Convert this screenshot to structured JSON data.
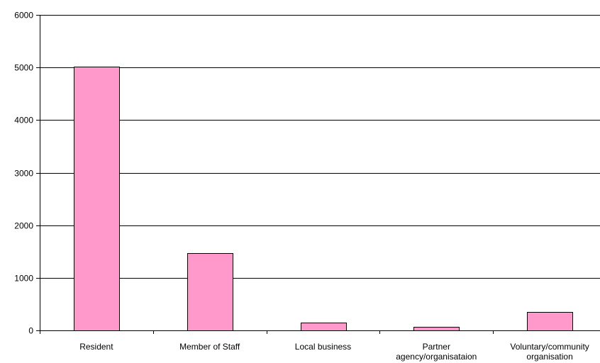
{
  "chart_data": {
    "type": "bar",
    "categories": [
      [
        "Resident"
      ],
      [
        "Member of Staff"
      ],
      [
        "Local business"
      ],
      [
        "Partner",
        "agency/organisataion"
      ],
      [
        "Voluntary/community",
        "organisation"
      ]
    ],
    "values": [
      5020,
      1470,
      150,
      70,
      355
    ],
    "ylim": [
      0,
      6000
    ],
    "yticks": [
      0,
      1000,
      2000,
      3000,
      4000,
      5000,
      6000
    ],
    "grid": true,
    "legend": "none"
  },
  "colors": {
    "bar_fill": "#ff99cc",
    "bar_stroke": "#000000",
    "grid": "#000000",
    "axis": "#000000"
  }
}
